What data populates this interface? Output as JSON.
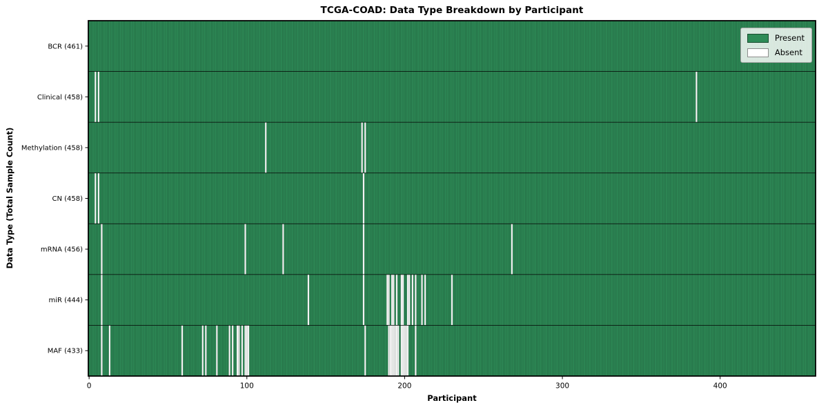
{
  "chart_data": {
    "type": "heatmap",
    "title": "TCGA-COAD: Data Type Breakdown by Participant",
    "xlabel": "Participant",
    "ylabel": "Data Type (Total Sample Count)",
    "legend_labels": {
      "present": "Present",
      "absent": "Absent"
    },
    "legend_position": "upper right",
    "grid": false,
    "n_participants": 461,
    "xlim": [
      -0.5,
      460.5
    ],
    "x_ticks": [
      0,
      100,
      200,
      300,
      400
    ],
    "rows": [
      {
        "label": "BCR (461)",
        "data_type": "BCR",
        "present_count": 461,
        "absent_count": 0,
        "absent_participants": []
      },
      {
        "label": "Clinical (458)",
        "data_type": "Clinical",
        "present_count": 458,
        "absent_count": 3,
        "absent_participants": [
          4,
          6,
          385
        ]
      },
      {
        "label": "Methylation (458)",
        "data_type": "Methylation",
        "present_count": 458,
        "absent_count": 3,
        "absent_participants": [
          112,
          173,
          175
        ]
      },
      {
        "label": "CN (458)",
        "data_type": "CN",
        "present_count": 458,
        "absent_count": 3,
        "absent_participants": [
          4,
          6,
          174
        ]
      },
      {
        "label": "mRNA (456)",
        "data_type": "mRNA",
        "present_count": 456,
        "absent_count": 5,
        "absent_participants": [
          8,
          99,
          123,
          174,
          268
        ]
      },
      {
        "label": "miR (444)",
        "data_type": "miR",
        "present_count": 444,
        "absent_count": 17,
        "absent_participants": [
          8,
          139,
          174,
          189,
          190,
          192,
          193,
          195,
          198,
          199,
          202,
          203,
          205,
          207,
          211,
          213,
          230
        ]
      },
      {
        "label": "MAF (433)",
        "data_type": "MAF",
        "present_count": 433,
        "absent_count": 28,
        "absent_participants": [
          8,
          13,
          59,
          72,
          74,
          81,
          89,
          91,
          94,
          95,
          97,
          99,
          100,
          101,
          175,
          190,
          191,
          192,
          193,
          194,
          195,
          196,
          198,
          199,
          200,
          201,
          202,
          207
        ]
      }
    ]
  },
  "colors": {
    "present": "#2e8b57",
    "absent": "#ffffff",
    "bar_edge": "rgba(0,0,0,0.5)",
    "row_separator": "rgba(0,0,0,0.85)",
    "plot_border": "#000000",
    "tick_text": "#000000",
    "legend_background": "rgba(255,255,255,0.82)",
    "legend_border": "#a8a8a8"
  }
}
